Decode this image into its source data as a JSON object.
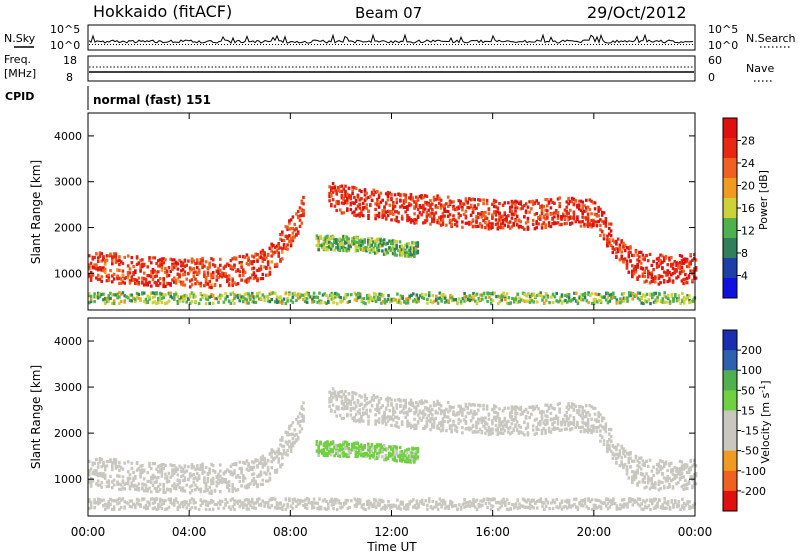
{
  "header": {
    "station": "Hokkaido (fitACF)",
    "beam": "Beam 07",
    "date": "29/Oct/2012"
  },
  "noise_panel": {
    "left_label": "N.Sky",
    "right_label": "N.Search",
    "left_ticks": [
      "10^5",
      "10^0"
    ],
    "right_ticks": [
      "10^5",
      "10^0"
    ]
  },
  "freq_panel": {
    "left_label_line1": "Freq.",
    "left_label_line2": "[MHz]",
    "right_label": "Nave",
    "left_ticks": [
      "18",
      "8"
    ],
    "right_ticks": [
      "60",
      "0"
    ]
  },
  "cpid_panel": {
    "label": "CPID",
    "value": "normal (fast) 151"
  },
  "colors": {
    "power_scale": [
      "#1010e0",
      "#1f3fa8",
      "#2f7f5a",
      "#4fb04f",
      "#cdd23a",
      "#f09a20",
      "#f06020",
      "#e82810",
      "#e01010"
    ],
    "velocity_scale": [
      "#e01010",
      "#f06020",
      "#f09a20",
      "#c8c8c0",
      "#c8c8c0",
      "#6fd040",
      "#4fb04f",
      "#2f60b0",
      "#1a2fb0"
    ]
  },
  "chart_data": [
    {
      "type": "heatmap",
      "name": "power",
      "xlabel": "",
      "ylabel": "Slant Range [km]",
      "x_ticks": [
        "00:00",
        "04:00",
        "08:00",
        "12:00",
        "16:00",
        "20:00",
        "00:00"
      ],
      "y_ticks": [
        1000,
        2000,
        3000,
        4000
      ],
      "xlim": [
        0,
        24
      ],
      "ylim": [
        200,
        4500
      ],
      "colorbar": {
        "label": "Power [dB]",
        "ticks": [
          4,
          8,
          12,
          16,
          20,
          24,
          28
        ],
        "range": [
          0,
          32
        ]
      },
      "bands": [
        {
          "name": "day-echo-band",
          "x": [
            0,
            1,
            2,
            3,
            4,
            5,
            6,
            7,
            7.5,
            8,
            8.5
          ],
          "y_center": [
            1150,
            1100,
            1050,
            1000,
            1000,
            1000,
            1050,
            1200,
            1500,
            1900,
            2400
          ],
          "level": 26
        },
        {
          "name": "evening-echo-band",
          "x": [
            9.5,
            11,
            13,
            15,
            17,
            19,
            20,
            20.5,
            21,
            21.5,
            22,
            23,
            24
          ],
          "y_center": [
            2650,
            2500,
            2400,
            2300,
            2250,
            2350,
            2300,
            1900,
            1500,
            1200,
            1100,
            1050,
            1100
          ],
          "level": 27
        },
        {
          "name": "mid-range-echo",
          "x": [
            9,
            10,
            11,
            12,
            13
          ],
          "y_center": [
            1650,
            1650,
            1600,
            1550,
            1500
          ],
          "level": 13
        },
        {
          "name": "near-range-clutter",
          "x": [
            0,
            24
          ],
          "y_center": [
            450,
            450
          ],
          "level": 14
        }
      ]
    },
    {
      "type": "heatmap",
      "name": "velocity",
      "xlabel": "Time UT",
      "ylabel": "Slant Range [km]",
      "x_ticks": [
        "00:00",
        "04:00",
        "08:00",
        "12:00",
        "16:00",
        "20:00",
        "00:00"
      ],
      "y_ticks": [
        1000,
        2000,
        3000,
        4000
      ],
      "xlim": [
        0,
        24
      ],
      "ylim": [
        200,
        4500
      ],
      "colorbar": {
        "label": "Velocity [m s",
        "label_sup": "-1",
        "label_end": "]",
        "ticks": [
          200,
          100,
          50,
          15,
          -15,
          -50,
          -100,
          -200
        ],
        "range": [
          -250,
          250
        ]
      },
      "bands": [
        {
          "name": "day-echo-band",
          "x": [
            0,
            1,
            2,
            3,
            4,
            5,
            6,
            7,
            7.5,
            8,
            8.5
          ],
          "y_center": [
            1150,
            1100,
            1050,
            1000,
            1000,
            1000,
            1050,
            1200,
            1500,
            1900,
            2400
          ],
          "level": 0
        },
        {
          "name": "evening-echo-band",
          "x": [
            9.5,
            11,
            13,
            15,
            17,
            19,
            20,
            20.5,
            21,
            21.5,
            22,
            23,
            24
          ],
          "y_center": [
            2650,
            2500,
            2400,
            2300,
            2250,
            2350,
            2300,
            1900,
            1500,
            1200,
            1100,
            1050,
            1100
          ],
          "level": 0
        },
        {
          "name": "mid-range-echo",
          "x": [
            9,
            10,
            11,
            12,
            13
          ],
          "y_center": [
            1650,
            1650,
            1600,
            1550,
            1500
          ],
          "level": 40
        },
        {
          "name": "near-range-clutter",
          "x": [
            0,
            24
          ],
          "y_center": [
            450,
            450
          ],
          "level": -60
        }
      ]
    }
  ]
}
